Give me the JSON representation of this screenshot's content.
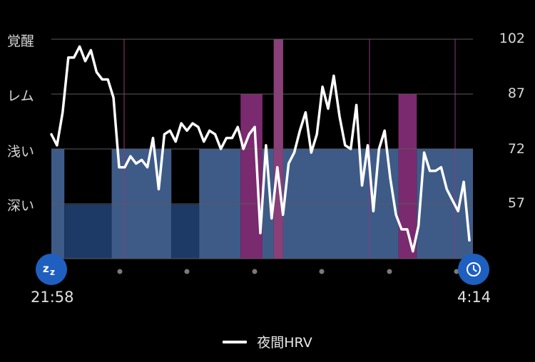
{
  "chart_data": {
    "type": "line",
    "title": "",
    "stage_labels": [
      "覚醒",
      "レム",
      "浅い",
      "深い"
    ],
    "y_ticks": [
      102,
      87,
      72,
      57
    ],
    "ylim": [
      42,
      102
    ],
    "x_start_label": "21:58",
    "x_end_label": "4:14",
    "x_range_min": [
      0,
      376
    ],
    "sleep_stages": [
      {
        "stage": "浅い",
        "start": 0,
        "end": 22
      },
      {
        "stage": "深い",
        "start": 22,
        "end": 102
      },
      {
        "stage": "浅い",
        "start": 102,
        "end": 203
      },
      {
        "stage": "深い",
        "start": 203,
        "end": 250
      },
      {
        "stage": "浅い",
        "start": 250,
        "end": 320
      },
      {
        "stage": "レム",
        "start": 320,
        "end": 357
      },
      {
        "stage": "浅い",
        "start": 357,
        "end": 376
      },
      {
        "stage": "覚醒",
        "start": 376,
        "end": 392
      },
      {
        "stage": "浅い",
        "start": 392,
        "end": 587
      },
      {
        "stage": "レム",
        "start": 587,
        "end": 618
      },
      {
        "stage": "浅い",
        "start": 618,
        "end": 713
      }
    ],
    "series": [
      {
        "name": "夜間HRV",
        "values": [
          76,
          73,
          82,
          97,
          97,
          100,
          96,
          99,
          93,
          91,
          91,
          86,
          67,
          67,
          70,
          68,
          69,
          67,
          75,
          61,
          76,
          77,
          74,
          79,
          77,
          79,
          78,
          74,
          77,
          76,
          72,
          75,
          75,
          78,
          72,
          76,
          78,
          49,
          73,
          53,
          67,
          54,
          68,
          71,
          77,
          82,
          71,
          76,
          89,
          83,
          92,
          81,
          73,
          72,
          84,
          62,
          73,
          55,
          72,
          77,
          64,
          54,
          50,
          50,
          44,
          51,
          71,
          66,
          66,
          67,
          61,
          58,
          55,
          63,
          47
        ]
      }
    ]
  },
  "legend": {
    "label": "夜間HRV"
  },
  "colors": {
    "light": "#3e5b88",
    "deep": "#1d3a66",
    "rem": "#7a2a6e",
    "awake": "#8a3f79",
    "line": "#ffffff",
    "button": "#1f5fbf"
  },
  "icons": {
    "start": "sleep-zz-icon",
    "end": "alarm-clock-icon"
  }
}
